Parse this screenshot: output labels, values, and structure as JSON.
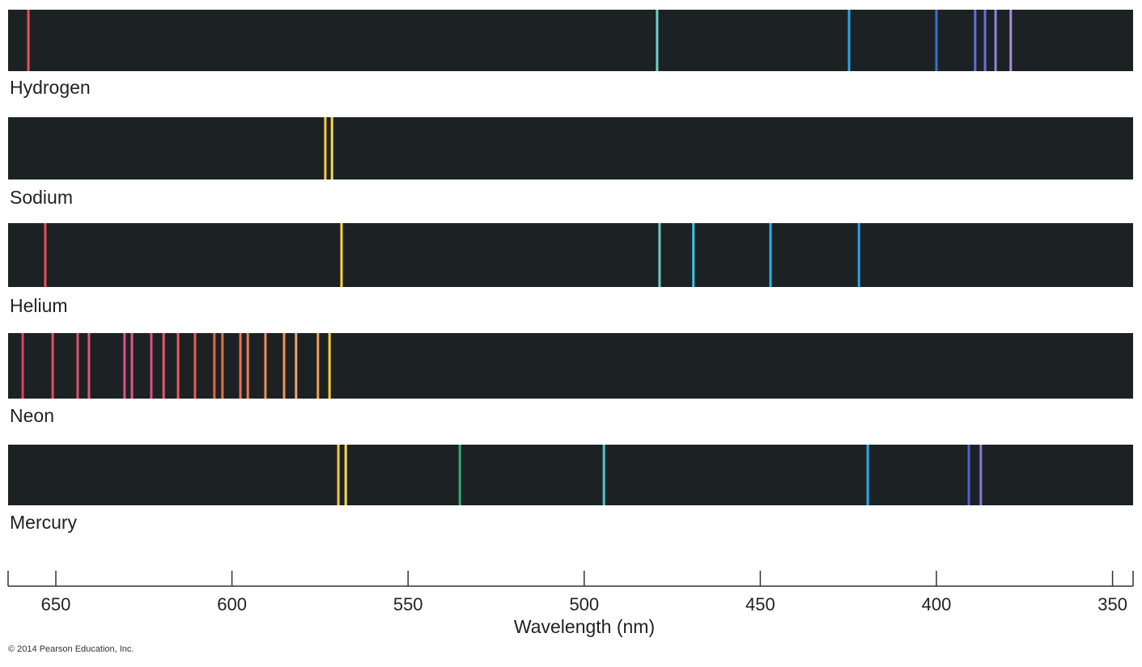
{
  "chart_data": {
    "type": "spectral-lines",
    "xlabel": "Wavelength (nm)",
    "xlim": [
      663.5,
      344.3
    ],
    "xticks": [
      650,
      600,
      550,
      500,
      450,
      400,
      350
    ],
    "band_color": "#1c2223",
    "spectra": [
      {
        "name": "Hydrogen",
        "lines": [
          [
            657.8,
            "#e8505a"
          ],
          [
            479.3,
            "#6fd0c8"
          ],
          [
            424.8,
            "#2aa6e6"
          ],
          [
            400,
            "#3b6fd0"
          ],
          [
            389,
            "#5b6ee0"
          ],
          [
            386.2,
            "#6a6ee0"
          ],
          [
            383.2,
            "#8a86e0"
          ],
          [
            378.9,
            "#a88ee0"
          ]
        ]
      },
      {
        "name": "Sodium",
        "lines": [
          [
            573.5,
            "#f6c93a"
          ],
          [
            571.6,
            "#f8d848"
          ]
        ]
      },
      {
        "name": "Helium",
        "lines": [
          [
            653,
            "#ee4a5a"
          ],
          [
            568.9,
            "#f8d43a"
          ],
          [
            478.6,
            "#6fc8c0"
          ],
          [
            469,
            "#38c8e0"
          ],
          [
            447.1,
            "#2ab0ea"
          ],
          [
            422,
            "#2aa0ea"
          ]
        ]
      },
      {
        "name": "Neon",
        "lines": [
          [
            659.4,
            "#e0406a"
          ],
          [
            650.9,
            "#e84a6a"
          ],
          [
            643.8,
            "#e24c72"
          ],
          [
            640.6,
            "#e85478"
          ],
          [
            630.5,
            "#d85090"
          ],
          [
            628.4,
            "#e05888"
          ],
          [
            622.9,
            "#e0507a"
          ],
          [
            619.4,
            "#e65470"
          ],
          [
            615.3,
            "#e85a5a"
          ],
          [
            610.5,
            "#ea5a4a"
          ],
          [
            605,
            "#ea6048"
          ],
          [
            602.7,
            "#e0704a"
          ],
          [
            597.6,
            "#ee7050"
          ],
          [
            595.5,
            "#f07a50"
          ],
          [
            590.5,
            "#f08a5a"
          ],
          [
            585.2,
            "#f09060"
          ],
          [
            581.8,
            "#f0a070"
          ],
          [
            575.6,
            "#f0a050"
          ],
          [
            572.3,
            "#f8d030"
          ]
        ]
      },
      {
        "name": "Mercury",
        "lines": [
          [
            569.8,
            "#f6c93a"
          ],
          [
            567.7,
            "#f8d848"
          ],
          [
            535.3,
            "#2faa78"
          ],
          [
            494.4,
            "#48c8c8"
          ],
          [
            419.5,
            "#28a8ee"
          ],
          [
            390.8,
            "#4a62d8"
          ],
          [
            387.4,
            "#8a78e0"
          ]
        ]
      }
    ]
  },
  "copyright": "© 2014 Pearson Education, Inc."
}
